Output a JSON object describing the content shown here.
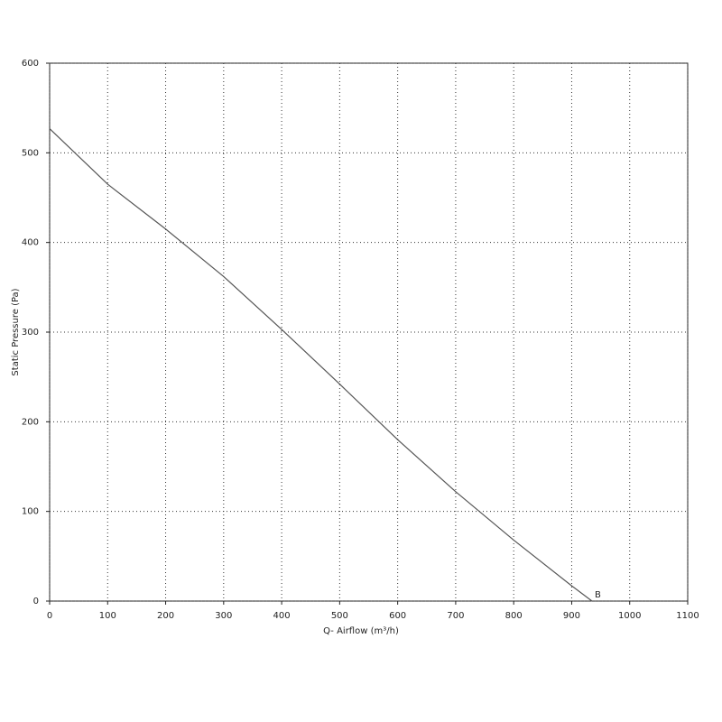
{
  "chart_data": {
    "type": "line",
    "x_label": "Q- Airflow (m³/h)",
    "y_label": "Static Pressure (Pa)",
    "x": [
      0,
      100,
      200,
      300,
      400,
      500,
      600,
      700,
      800,
      900,
      935
    ],
    "series": [
      {
        "color": "#555555",
        "values": [
          527,
          465,
          415,
          362,
          303,
          242,
          180,
          122,
          68,
          17,
          0
        ]
      }
    ],
    "annotation": {
      "text": "B",
      "x": 935,
      "y": 0
    },
    "xlim": [
      0,
      1100
    ],
    "xticks": [
      0,
      100,
      200,
      300,
      400,
      500,
      600,
      700,
      800,
      900,
      1000,
      1100
    ],
    "ylim": [
      0,
      600
    ],
    "yticks": [
      0,
      100,
      200,
      300,
      400,
      500,
      600
    ],
    "grid": true
  }
}
